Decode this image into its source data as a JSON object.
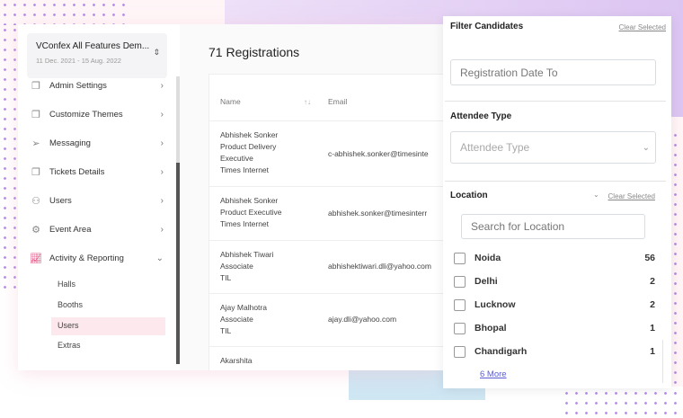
{
  "event": {
    "name": "VConfex All Features Dem...",
    "dates": "11 Dec. 2021 - 15 Aug. 2022"
  },
  "sidebar": {
    "items": [
      {
        "label": "Admin Settings",
        "icon": "copy-icon"
      },
      {
        "label": "Customize Themes",
        "icon": "copy-icon"
      },
      {
        "label": "Messaging",
        "icon": "send-icon"
      },
      {
        "label": "Tickets Details",
        "icon": "copy-icon"
      },
      {
        "label": "Users",
        "icon": "users-icon"
      },
      {
        "label": "Event Area",
        "icon": "gear-icon"
      },
      {
        "label": "Activity & Reporting",
        "icon": "chart-icon"
      }
    ],
    "subitems": [
      "Halls",
      "Booths",
      "Users",
      "Extras"
    ],
    "active_subitem": "Users"
  },
  "main": {
    "title": "71 Registrations",
    "columns": [
      "Name",
      "Email"
    ],
    "rows": [
      {
        "name": [
          "Abhishek Sonker",
          "Product Delivery",
          "Executive",
          "Times Internet"
        ],
        "email": "c-abhishek.sonker@timesinte"
      },
      {
        "name": [
          "Abhishek Sonker",
          "Product Executive",
          "Times Internet"
        ],
        "email": "abhishek.sonker@timesinterr"
      },
      {
        "name": [
          "Abhishek Tiwari",
          "Associate",
          "TIL"
        ],
        "email": "abhishektiwari.dli@yahoo.com"
      },
      {
        "name": [
          "Ajay Malhotra",
          "Associate",
          "TIL"
        ],
        "email": "ajay.dli@yahoo.com"
      },
      {
        "name": [
          "Akarshita"
        ],
        "email": ""
      }
    ]
  },
  "filter": {
    "title": "Filter Candidates",
    "clear": "Clear Selected",
    "date_to_placeholder": "Registration Date To",
    "attendee_type": {
      "title": "Attendee Type",
      "placeholder": "Attendee Type"
    },
    "location": {
      "title": "Location",
      "clear": "Clear Selected",
      "search_placeholder": "Search for Location",
      "options": [
        {
          "label": "Noida",
          "count": "56"
        },
        {
          "label": "Delhi",
          "count": "2"
        },
        {
          "label": "Lucknow",
          "count": "2"
        },
        {
          "label": "Bhopal",
          "count": "1"
        },
        {
          "label": "Chandigarh",
          "count": "1"
        }
      ],
      "more": "6 More"
    }
  },
  "colors": {
    "accent": "#e0457b",
    "active_bg": "#fde8ed",
    "link": "#5b5bd6"
  }
}
